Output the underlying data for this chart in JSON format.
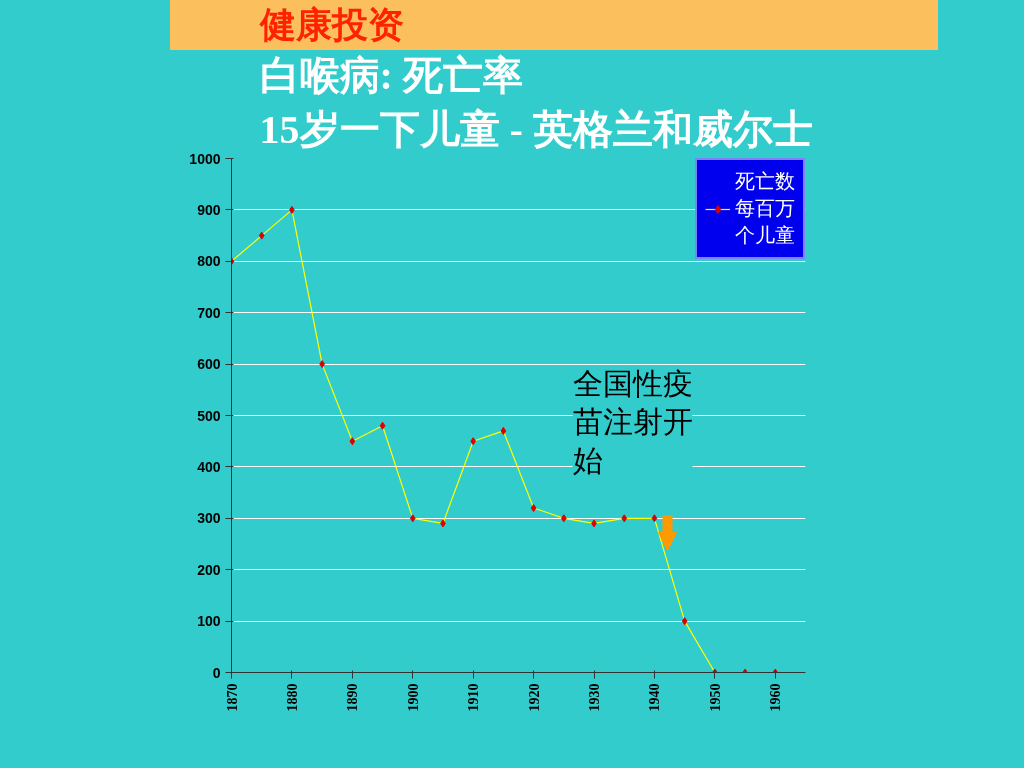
{
  "chart_data": {
    "type": "line",
    "title": "白喉病: 死亡率",
    "subtitle": "15岁一下儿童       - 英格兰和威尔士",
    "annotations": [
      "健康投资",
      "全国性疫苗注射开始"
    ],
    "x": [
      1870,
      1875,
      1880,
      1885,
      1890,
      1895,
      1900,
      1905,
      1910,
      1915,
      1920,
      1925,
      1930,
      1935,
      1940,
      1945,
      1950,
      1955,
      1960
    ],
    "series": [
      {
        "name": "死亡数每百万个儿童",
        "color": "#ffff00",
        "values": [
          800,
          850,
          900,
          600,
          450,
          480,
          300,
          290,
          450,
          470,
          320,
          300,
          290,
          300,
          300,
          100,
          0,
          0,
          0
        ]
      }
    ],
    "xlim": [
      1870,
      1965
    ],
    "xticks": [
      1870,
      1880,
      1890,
      1900,
      1910,
      1920,
      1930,
      1940,
      1950,
      1960
    ],
    "ylim": [
      0,
      1000
    ],
    "yticks": [
      0,
      100,
      200,
      300,
      400,
      500,
      600,
      700,
      800,
      900,
      1000
    ],
    "grid": "y",
    "legend": "top right",
    "marker": "diamond",
    "line_style": "solid"
  }
}
